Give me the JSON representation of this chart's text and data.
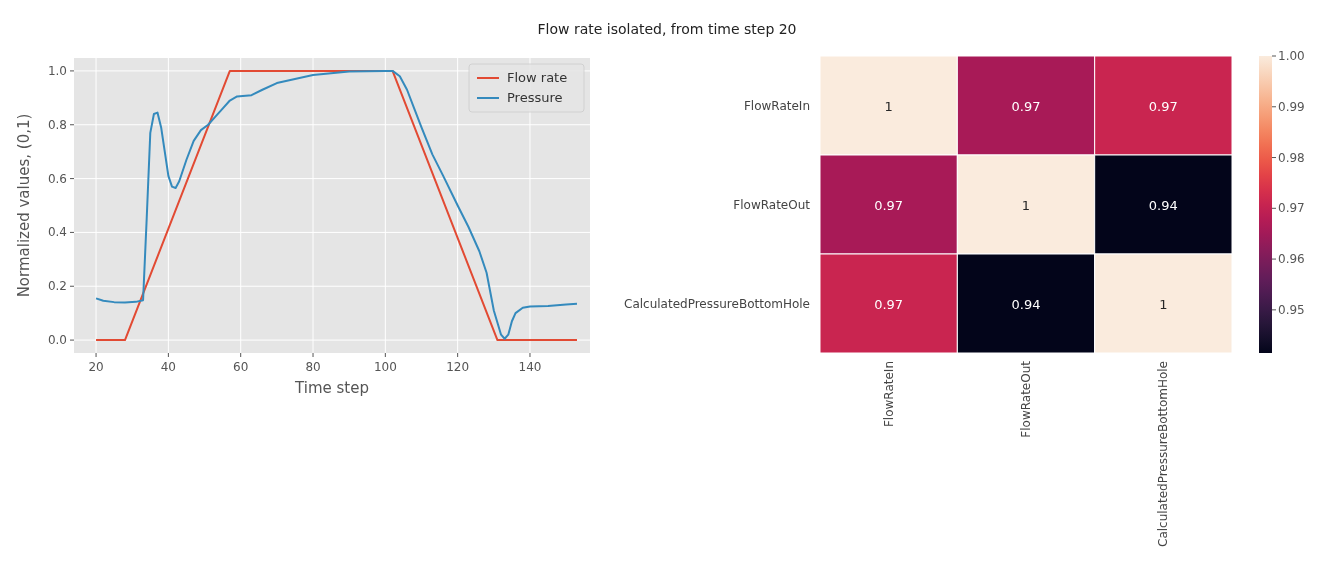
{
  "chart_data": [
    {
      "type": "line",
      "title": "Flow rate isolated, from time step 20",
      "xlabel": "Time step",
      "ylabel": "Normalized values, (0,1)",
      "xlim": [
        13.9,
        156.6
      ],
      "xticks": [
        20,
        40,
        60,
        80,
        100,
        120,
        140
      ],
      "ylim": [
        -0.048,
        1.048
      ],
      "yticks": [
        {
          "value": 0,
          "label": "0.0"
        },
        0.2,
        0.4,
        0.6,
        0.8,
        {
          "value": 1,
          "label": "1.0"
        }
      ],
      "grid": true,
      "legend": "top right",
      "series": [
        {
          "name": "Flow rate",
          "color": "#e24a33",
          "x": [
            20,
            28,
            57,
            102,
            131,
            153
          ],
          "values": [
            0,
            0,
            1,
            1,
            0,
            0
          ]
        },
        {
          "name": "Pressure",
          "color": "#348abd",
          "x": [
            20,
            22,
            25,
            28,
            31,
            33,
            34,
            35,
            36,
            37,
            38,
            39,
            40,
            41,
            42,
            43,
            45,
            47,
            49,
            51,
            53,
            55,
            57,
            59,
            63,
            66,
            70,
            75,
            80,
            90,
            100,
            102,
            104,
            106,
            108,
            110,
            113,
            116,
            120,
            123,
            126,
            128,
            130,
            132,
            133,
            134,
            135,
            136,
            138,
            140,
            145,
            150,
            153
          ],
          "values": [
            0.155,
            0.146,
            0.141,
            0.14,
            0.142,
            0.148,
            0.45,
            0.77,
            0.84,
            0.845,
            0.79,
            0.7,
            0.61,
            0.57,
            0.565,
            0.59,
            0.67,
            0.74,
            0.78,
            0.8,
            0.83,
            0.86,
            0.89,
            0.905,
            0.91,
            0.93,
            0.955,
            0.97,
            0.985,
            0.998,
            1.0,
            1.0,
            0.98,
            0.93,
            0.86,
            0.79,
            0.69,
            0.61,
            0.5,
            0.42,
            0.33,
            0.25,
            0.11,
            0.02,
            0.005,
            0.02,
            0.07,
            0.1,
            0.12,
            0.125,
            0.127,
            0.132,
            0.135
          ]
        }
      ]
    },
    {
      "type": "heatmap",
      "categories": [
        "FlowRateIn",
        "FlowRateOut",
        "CalculatedPressureBottomHole"
      ],
      "y_categories": [
        "FlowRateIn",
        "FlowRateOut",
        "CalculatedPressureBottomHole"
      ],
      "cells": [
        [
          1,
          0.966,
          0.971
        ],
        [
          0.966,
          1,
          0.9415
        ],
        [
          0.971,
          0.9415,
          1
        ]
      ],
      "cell_labels": [
        [
          "1",
          "0.97",
          "0.97"
        ],
        [
          "0.97",
          "1",
          "0.94"
        ],
        [
          "0.97",
          "0.94",
          "1"
        ]
      ],
      "clim": [
        0.9415,
        1.0
      ],
      "cticks": [
        0.95,
        0.96,
        0.97,
        0.98,
        0.99,
        {
          "value": 1,
          "label": "1.00"
        }
      ]
    }
  ]
}
